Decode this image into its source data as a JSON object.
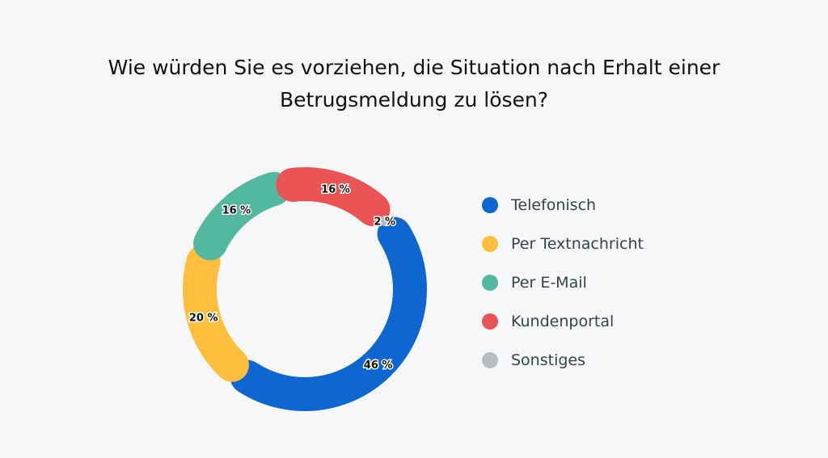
{
  "chart_data": {
    "type": "pie",
    "style": "donut",
    "title_lines": [
      "Wie würden Sie es vorziehen, die Situation nach Erhalt einer",
      "Betrugsmeldung zu lösen?"
    ],
    "slices": [
      {
        "name": "Telefonisch",
        "value": 46,
        "label": "46 %",
        "color": "#0e67d1"
      },
      {
        "name": "Per Textnachricht",
        "value": 20,
        "label": "20 %",
        "color": "#ffbe3b"
      },
      {
        "name": "Per E-Mail",
        "value": 16,
        "label": "16 %",
        "color": "#52b8a0"
      },
      {
        "name": "Kundenportal",
        "value": 16,
        "label": "16 %",
        "color": "#ea5454"
      },
      {
        "name": "Sonstiges",
        "value": 2,
        "label": "2 %",
        "color": "#b8bdc4"
      }
    ],
    "legend_position": "right"
  }
}
